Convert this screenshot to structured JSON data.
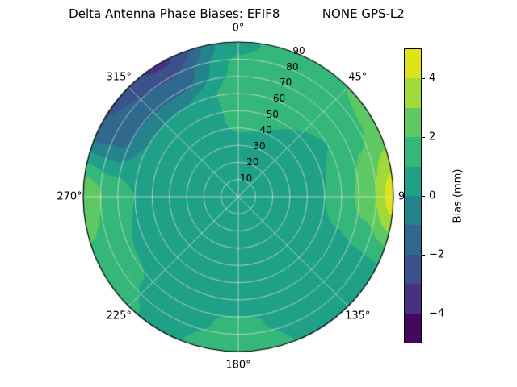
{
  "chart_data": {
    "type": "heatmap",
    "projection": "polar",
    "title": "Delta Antenna Phase Biases: EFIF8           NONE GPS-L2",
    "angular_axis": {
      "direction": "clockwise",
      "zero_location": "top",
      "ticks_deg": [
        0,
        45,
        90,
        135,
        180,
        225,
        270,
        315
      ],
      "tick_labels": [
        "0°",
        "45°",
        "90",
        "135°",
        "180°",
        "225°",
        "270°",
        "315°"
      ]
    },
    "radial_axis": {
      "min": 0,
      "max": 90,
      "ticks": [
        10,
        20,
        30,
        40,
        50,
        60,
        70,
        80,
        90
      ],
      "tick_labels": [
        "10",
        "20",
        "30",
        "40",
        "50",
        "60",
        "70",
        "80",
        "90"
      ],
      "label_position_deg": 22.5
    },
    "grid": true,
    "colormap": "viridis",
    "levels": [
      -5,
      -4,
      -3,
      -2,
      -1,
      0,
      1,
      2,
      3,
      4,
      5
    ],
    "band_colors": [
      "#46085c",
      "#46327e",
      "#3b518b",
      "#30688e",
      "#25838e",
      "#1fa188",
      "#35b779",
      "#5ec962",
      "#a0da39",
      "#dde318"
    ],
    "colorbar": {
      "label": "Bias (mm)",
      "range": [
        -5,
        5
      ],
      "ticks": [
        4,
        2,
        0,
        -2,
        -4
      ],
      "tick_labels": [
        "4",
        "2",
        "0",
        "−2",
        "−4"
      ]
    },
    "grid_azimuth_deg": [
      0,
      30,
      60,
      90,
      120,
      150,
      180,
      210,
      240,
      270,
      300,
      330
    ],
    "grid_r": [
      0,
      15,
      30,
      45,
      60,
      75,
      90
    ],
    "values_mm": [
      [
        0.5,
        0.5,
        0.5,
        0.5,
        0.5,
        0.5,
        0.5,
        0.5,
        0.5,
        0.5,
        0.5,
        0.5
      ],
      [
        0.5,
        0.5,
        0.5,
        0.5,
        0.5,
        0.5,
        0.5,
        0.5,
        0.5,
        0.5,
        0.5,
        0.5
      ],
      [
        0.8,
        0.8,
        0.5,
        0.5,
        0.5,
        0.5,
        0.5,
        0.5,
        0.5,
        0.5,
        0.3,
        0.5
      ],
      [
        1.2,
        1.0,
        0.7,
        0.8,
        0.5,
        0.5,
        0.5,
        0.5,
        0.5,
        0.6,
        0.2,
        0.4
      ],
      [
        1.5,
        1.2,
        1.0,
        1.5,
        0.7,
        0.5,
        0.6,
        0.5,
        0.8,
        1.0,
        0.0,
        0.0
      ],
      [
        1.2,
        1.5,
        1.8,
        2.5,
        0.8,
        0.6,
        1.2,
        0.6,
        1.2,
        1.8,
        -1.5,
        -1.8
      ],
      [
        0.8,
        1.8,
        2.2,
        4.5,
        0.8,
        0.8,
        1.8,
        0.8,
        1.5,
        2.8,
        -2.0,
        -3.2
      ]
    ]
  }
}
